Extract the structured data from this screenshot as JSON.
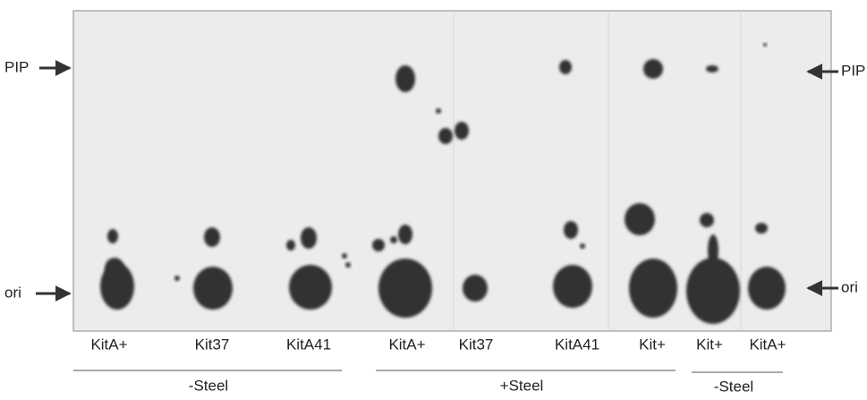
{
  "left_labels": [
    "PIP",
    "ori"
  ],
  "right_labels": [
    "PIP",
    "ori"
  ],
  "lanes": [
    "KitA+",
    "Kit37",
    "KitA41",
    "KitA+",
    "Kit37",
    "KitA41",
    "Kit+",
    "Kit+",
    "KitA+"
  ],
  "groups": [
    {
      "label": "-Steel"
    },
    {
      "label": "+Steel"
    },
    {
      "label": "-Steel"
    }
  ]
}
